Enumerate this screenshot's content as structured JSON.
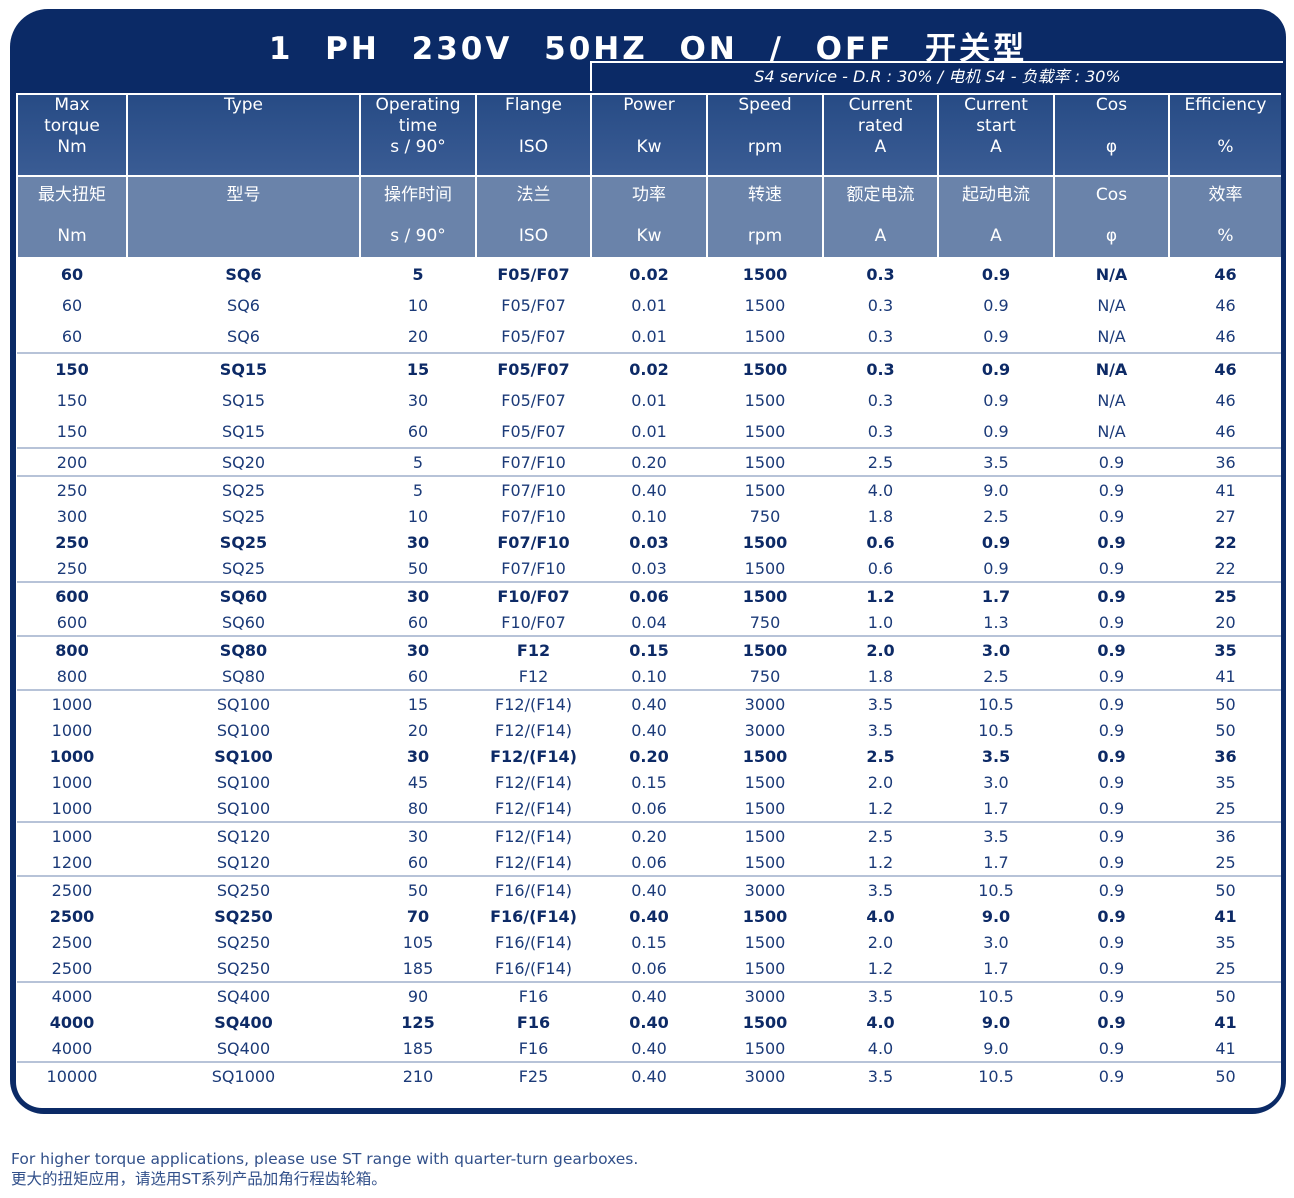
{
  "title": "1 PH  230V  50HZ  ON / OFF  开关型",
  "s4": "S4 service - D.R : 30% / 电机 S4 - 负载率 : 30%",
  "header_en": [
    [
      "Max",
      "torque",
      "Nm"
    ],
    [
      "Type",
      "",
      ""
    ],
    [
      "Operating",
      "time",
      "s / 90°"
    ],
    [
      "Flange",
      "",
      "ISO"
    ],
    [
      "Power",
      "",
      "Kw"
    ],
    [
      "Speed",
      "",
      "rpm"
    ],
    [
      "Current",
      "rated",
      "A"
    ],
    [
      "Current",
      "start",
      "A"
    ],
    [
      "Cos",
      "",
      "φ"
    ],
    [
      "Efficiency",
      "",
      "%"
    ]
  ],
  "header_cn": [
    [
      "最大扭矩",
      "Nm"
    ],
    [
      "型号",
      ""
    ],
    [
      "操作时间",
      "s / 90°"
    ],
    [
      "法兰",
      "ISO"
    ],
    [
      "功率",
      "Kw"
    ],
    [
      "转速",
      "rpm"
    ],
    [
      "额定电流",
      "A"
    ],
    [
      "起动电流",
      "A"
    ],
    [
      "Cos",
      "φ"
    ],
    [
      "效率",
      "%"
    ]
  ],
  "groups": [
    [
      {
        "b": 1,
        "v": [
          "60",
          "SQ6",
          "5",
          "F05/F07",
          "0.02",
          "1500",
          "0.3",
          "0.9",
          "N/A",
          "46"
        ]
      },
      {
        "v": [
          "60",
          "SQ6",
          "10",
          "F05/F07",
          "0.01",
          "1500",
          "0.3",
          "0.9",
          "N/A",
          "46"
        ]
      },
      {
        "v": [
          "60",
          "SQ6",
          "20",
          "F05/F07",
          "0.01",
          "1500",
          "0.3",
          "0.9",
          "N/A",
          "46"
        ]
      }
    ],
    [
      {
        "b": 1,
        "v": [
          "150",
          "SQ15",
          "15",
          "F05/F07",
          "0.02",
          "1500",
          "0.3",
          "0.9",
          "N/A",
          "46"
        ]
      },
      {
        "v": [
          "150",
          "SQ15",
          "30",
          "F05/F07",
          "0.01",
          "1500",
          "0.3",
          "0.9",
          "N/A",
          "46"
        ]
      },
      {
        "v": [
          "150",
          "SQ15",
          "60",
          "F05/F07",
          "0.01",
          "1500",
          "0.3",
          "0.9",
          "N/A",
          "46"
        ]
      }
    ],
    [
      {
        "v": [
          "200",
          "SQ20",
          "5",
          "F07/F10",
          "0.20",
          "1500",
          "2.5",
          "3.5",
          "0.9",
          "36"
        ]
      }
    ],
    [
      {
        "v": [
          "250",
          "SQ25",
          "5",
          "F07/F10",
          "0.40",
          "1500",
          "4.0",
          "9.0",
          "0.9",
          "41"
        ]
      },
      {
        "v": [
          "300",
          "SQ25",
          "10",
          "F07/F10",
          "0.10",
          "750",
          "1.8",
          "2.5",
          "0.9",
          "27"
        ]
      },
      {
        "b": 1,
        "v": [
          "250",
          "SQ25",
          "30",
          "F07/F10",
          "0.03",
          "1500",
          "0.6",
          "0.9",
          "0.9",
          "22"
        ]
      },
      {
        "v": [
          "250",
          "SQ25",
          "50",
          "F07/F10",
          "0.03",
          "1500",
          "0.6",
          "0.9",
          "0.9",
          "22"
        ]
      }
    ],
    [
      {
        "b": 1,
        "v": [
          "600",
          "SQ60",
          "30",
          "F10/F07",
          "0.06",
          "1500",
          "1.2",
          "1.7",
          "0.9",
          "25"
        ]
      },
      {
        "v": [
          "600",
          "SQ60",
          "60",
          "F10/F07",
          "0.04",
          "750",
          "1.0",
          "1.3",
          "0.9",
          "20"
        ]
      }
    ],
    [
      {
        "b": 1,
        "v": [
          "800",
          "SQ80",
          "30",
          "F12",
          "0.15",
          "1500",
          "2.0",
          "3.0",
          "0.9",
          "35"
        ]
      },
      {
        "v": [
          "800",
          "SQ80",
          "60",
          "F12",
          "0.10",
          "750",
          "1.8",
          "2.5",
          "0.9",
          "41"
        ]
      }
    ],
    [
      {
        "v": [
          "1000",
          "SQ100",
          "15",
          "F12/(F14)",
          "0.40",
          "3000",
          "3.5",
          "10.5",
          "0.9",
          "50"
        ]
      },
      {
        "v": [
          "1000",
          "SQ100",
          "20",
          "F12/(F14)",
          "0.40",
          "3000",
          "3.5",
          "10.5",
          "0.9",
          "50"
        ]
      },
      {
        "b": 1,
        "v": [
          "1000",
          "SQ100",
          "30",
          "F12/(F14)",
          "0.20",
          "1500",
          "2.5",
          "3.5",
          "0.9",
          "36"
        ]
      },
      {
        "v": [
          "1000",
          "SQ100",
          "45",
          "F12/(F14)",
          "0.15",
          "1500",
          "2.0",
          "3.0",
          "0.9",
          "35"
        ]
      },
      {
        "v": [
          "1000",
          "SQ100",
          "80",
          "F12/(F14)",
          "0.06",
          "1500",
          "1.2",
          "1.7",
          "0.9",
          "25"
        ]
      }
    ],
    [
      {
        "v": [
          "1000",
          "SQ120",
          "30",
          "F12/(F14)",
          "0.20",
          "1500",
          "2.5",
          "3.5",
          "0.9",
          "36"
        ]
      },
      {
        "v": [
          "1200",
          "SQ120",
          "60",
          "F12/(F14)",
          "0.06",
          "1500",
          "1.2",
          "1.7",
          "0.9",
          "25"
        ]
      }
    ],
    [
      {
        "v": [
          "2500",
          "SQ250",
          "50",
          "F16/(F14)",
          "0.40",
          "3000",
          "3.5",
          "10.5",
          "0.9",
          "50"
        ]
      },
      {
        "b": 1,
        "v": [
          "2500",
          "SQ250",
          "70",
          "F16/(F14)",
          "0.40",
          "1500",
          "4.0",
          "9.0",
          "0.9",
          "41"
        ]
      },
      {
        "v": [
          "2500",
          "SQ250",
          "105",
          "F16/(F14)",
          "0.15",
          "1500",
          "2.0",
          "3.0",
          "0.9",
          "35"
        ]
      },
      {
        "v": [
          "2500",
          "SQ250",
          "185",
          "F16/(F14)",
          "0.06",
          "1500",
          "1.2",
          "1.7",
          "0.9",
          "25"
        ]
      }
    ],
    [
      {
        "v": [
          "4000",
          "SQ400",
          "90",
          "F16",
          "0.40",
          "3000",
          "3.5",
          "10.5",
          "0.9",
          "50"
        ]
      },
      {
        "b": 1,
        "v": [
          "4000",
          "SQ400",
          "125",
          "F16",
          "0.40",
          "1500",
          "4.0",
          "9.0",
          "0.9",
          "41"
        ]
      },
      {
        "v": [
          "4000",
          "SQ400",
          "185",
          "F16",
          "0.40",
          "1500",
          "4.0",
          "9.0",
          "0.9",
          "41"
        ]
      }
    ],
    [
      {
        "v": [
          "10000",
          "SQ1000",
          "210",
          "F25",
          "0.40",
          "3000",
          "3.5",
          "10.5",
          "0.9",
          "50"
        ]
      }
    ]
  ],
  "footer": [
    "For higher torque applications, please use ST range with quarter-turn gearboxes.",
    "更大的扭矩应用，请选用ST系列产品加角行程齿轮箱。"
  ]
}
